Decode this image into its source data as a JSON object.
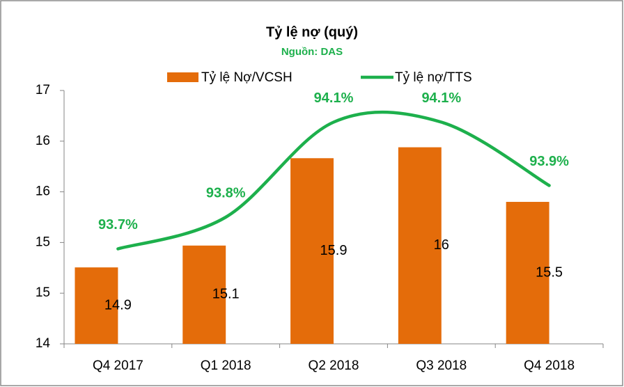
{
  "chart_data": {
    "type": "bar",
    "title": "Tỷ lệ nợ (quý)",
    "subtitle": "Nguồn: DAS",
    "categories": [
      "Q4 2017",
      "Q1 2018",
      "Q2 2018",
      "Q3 2018",
      "Q4 2018"
    ],
    "series": [
      {
        "name": "Tỷ lệ Nợ/VCSH",
        "type": "bar",
        "color": "#e46c0a",
        "values": [
          14.9,
          15.1,
          15.9,
          16.0,
          15.5
        ]
      },
      {
        "name": "Tỷ lệ nợ/TTS",
        "type": "line",
        "axis": "y2",
        "color": "#1db04c",
        "values": [
          93.7,
          93.8,
          94.1,
          94.1,
          93.9
        ],
        "value_labels": [
          "93.7%",
          "93.8%",
          "94.1%",
          "94.1%",
          "93.9%"
        ]
      }
    ],
    "ylim": [
      14.2,
      16.52
    ],
    "yticks": [
      {
        "value": 14.2,
        "label": "14"
      },
      {
        "value": 14.664,
        "label": "15"
      },
      {
        "value": 15.128,
        "label": "15"
      },
      {
        "value": 15.592,
        "label": "16"
      },
      {
        "value": 16.056,
        "label": "16"
      },
      {
        "value": 16.52,
        "label": "17"
      }
    ],
    "y2lim": [
      93.4,
      94.2
    ],
    "legend": "top"
  }
}
